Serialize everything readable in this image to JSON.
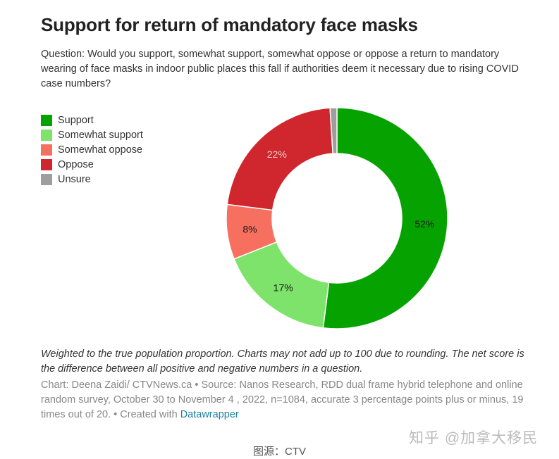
{
  "title": "Support for return of mandatory face masks",
  "question": "Question: Would you support, somewhat support, somewhat oppose or oppose a return to mandatory wearing of face masks in indoor public places this fall if authorities deem it necessary due to rising COVID case numbers?",
  "note": "Weighted to the true population proportion. Charts may not add up to 100 due to rounding. The net score is the difference between all positive and negative numbers in a question.",
  "source": {
    "text": "Chart: Deena Zaidi/ CTVNews.ca • Source: Nanos Research, RDD dual frame hybrid telephone and online random survey, October 30 to November 4 , 2022, n=1084, accurate 3 percentage points plus or minus, 19 times out of 20. • Created with ",
    "link": "Datawrapper"
  },
  "watermark": "知乎 @加拿大移民",
  "caption": "图源：CTV",
  "chart_data": {
    "type": "pie",
    "donut": true,
    "legend_position": "left",
    "categories": [
      "Support",
      "Somewhat support",
      "Somewhat oppose",
      "Oppose",
      "Unsure"
    ],
    "values": [
      52,
      17,
      8,
      22,
      1
    ],
    "labels": [
      "52%",
      "17%",
      "8%",
      "22%",
      ""
    ],
    "colors": [
      "#06a300",
      "#7de36b",
      "#f76f5e",
      "#d0262e",
      "#9e9e9e"
    ],
    "label_colors": [
      "#1a1a1a",
      "#1a1a1a",
      "#1a1a1a",
      "#f4d0d0",
      "#1a1a1a"
    ]
  }
}
